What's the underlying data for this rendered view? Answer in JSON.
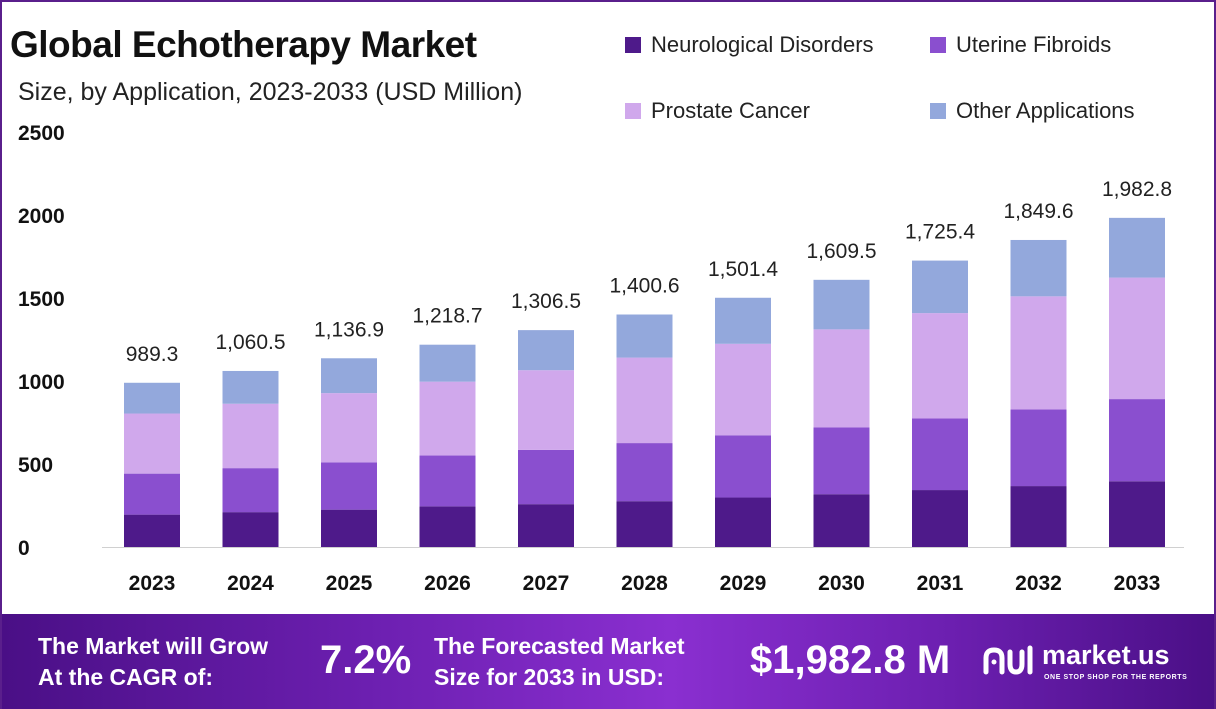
{
  "header": {
    "title": "Global Echotherapy Market",
    "subtitle": "Size, by Application, 2023-2033 (USD Million)"
  },
  "legend": [
    {
      "label": "Neurological Disorders",
      "color": "#4e1a8a"
    },
    {
      "label": "Uterine Fibroids",
      "color": "#8a4fcf"
    },
    {
      "label": "Prostate Cancer",
      "color": "#d0a8ec"
    },
    {
      "label": "Other Applications",
      "color": "#93a8dc"
    }
  ],
  "chart_data": {
    "type": "bar",
    "stacked": true,
    "title": "Global Echotherapy Market",
    "subtitle": "Size, by Application, 2023-2033 (USD Million)",
    "categories": [
      "2023",
      "2024",
      "2025",
      "2026",
      "2027",
      "2028",
      "2029",
      "2030",
      "2031",
      "2032",
      "2033"
    ],
    "series": [
      {
        "name": "Neurological Disorders",
        "color": "#4e1a8a",
        "values": [
          195,
          210,
          225,
          245,
          258,
          276,
          298,
          318,
          343,
          367,
          396
        ]
      },
      {
        "name": "Uterine Fibroids",
        "color": "#8a4fcf",
        "values": [
          247,
          265,
          285,
          306,
          327,
          350,
          375,
          402,
          431,
          462,
          495
        ]
      },
      {
        "name": "Prostate Cancer",
        "color": "#d0a8ec",
        "values": [
          362,
          388,
          417,
          445,
          480,
          515,
          551,
          591,
          635,
          681,
          732
        ]
      },
      {
        "name": "Other Applications",
        "color": "#93a8dc",
        "values": [
          185.3,
          197.5,
          209.9,
          222.7,
          241.5,
          259.6,
          277.4,
          298.5,
          316.4,
          339.6,
          359.8
        ]
      }
    ],
    "totals": [
      989.3,
      1060.5,
      1136.9,
      1218.7,
      1306.5,
      1400.6,
      1501.4,
      1609.5,
      1725.4,
      1849.6,
      1982.8
    ],
    "total_labels": [
      "989.3",
      "1,060.5",
      "1,136.9",
      "1,218.7",
      "1,306.5",
      "1,400.6",
      "1,501.4",
      "1,609.5",
      "1,725.4",
      "1,849.6",
      "1,982.8"
    ],
    "yticks": [
      "0",
      "500",
      "1000",
      "1500",
      "2000",
      "2500"
    ],
    "ylim": [
      0,
      2500
    ],
    "xlabel": "",
    "ylabel": "",
    "grid": false,
    "legend_position": "top-right"
  },
  "banner": {
    "cagr_text_line1": "The Market will Grow",
    "cagr_text_line2": "At the CAGR of:",
    "cagr_value": "7.2%",
    "forecast_text_line1": "The Forecasted Market",
    "forecast_text_line2": "Size for 2033 in USD:",
    "forecast_value": "$1,982.8 M",
    "brand_name": "market.us",
    "brand_tagline": "ONE STOP SHOP FOR THE REPORTS"
  }
}
